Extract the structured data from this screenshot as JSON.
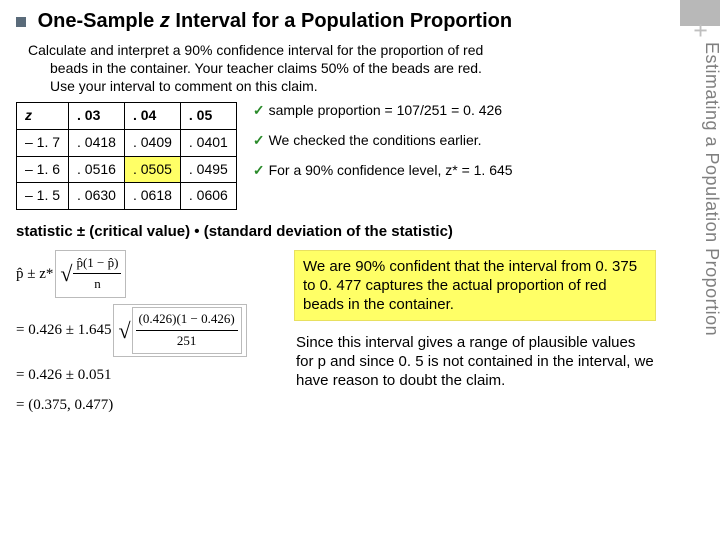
{
  "decor": {
    "plus": "+"
  },
  "sidebar": {
    "label": "Estimating a Population Proportion"
  },
  "title": {
    "prefix": "One-Sample",
    "zword": "z",
    "rest": "Interval for a Population Proportion"
  },
  "instr": {
    "l1": "Calculate and interpret a 90% confidence interval for the proportion of red",
    "l2": "beads in the container. Your teacher claims 50% of the beads are red.",
    "l3": "Use your interval to comment on this claim."
  },
  "ztable": {
    "headers": {
      "z": "z",
      "c1": ". 03",
      "c2": ". 04",
      "c3": ". 05"
    },
    "rows": [
      {
        "z": "– 1. 7",
        "c1": ". 0418",
        "c2": ". 0409",
        "c3": ". 0401"
      },
      {
        "z": "– 1. 6",
        "c1": ". 0516",
        "c2": ". 0505",
        "c3": ". 0495"
      },
      {
        "z": "– 1. 5",
        "c1": ". 0630",
        "c2": ". 0618",
        "c3": ". 0606"
      }
    ],
    "highlight": {
      "row": 1,
      "col": "c2"
    },
    "styling": {
      "border_color": "#000000",
      "highlight_bg": "#ffff66",
      "cell_padding": "4px 8px",
      "font_size": 14
    }
  },
  "notes": {
    "n1": "sample proportion = 107/251 = 0. 426",
    "n2": "We checked the conditions earlier.",
    "n3": "For a 90% confidence level, z* = 1. 645",
    "check_color": "#2a8a2a",
    "check_glyph": "✓"
  },
  "formula": "statistic ± (critical value) • (standard deviation of the statistic)",
  "math": {
    "line1_lhs": "p̂ ± z*",
    "line1_frac_num": "p̂(1 − p̂)",
    "line1_frac_den": "n",
    "line2_lhs": "= 0.426 ± 1.645",
    "line2_frac_num": "(0.426)(1 − 0.426)",
    "line2_frac_den": "251",
    "line3": "= 0.426 ± 0.051",
    "line4": "= (0.375,  0.477)",
    "font_family": "Times New Roman",
    "outer_box_border": "#bbbbbb"
  },
  "box1": "We are 90% confident that the interval from 0. 375 to 0. 477 captures the actual proportion of red beads in the container.",
  "box2": "Since this interval gives a range of plausible values for p and since 0. 5 is not contained in the interval, we have reason to doubt the claim.",
  "colors": {
    "background": "#ffffff",
    "sidebar_text": "#808080",
    "bullet": "#5a6b7a",
    "topbar": "#b8b8b8",
    "plus": "#bfbfbf",
    "highlight": "#ffff66"
  }
}
